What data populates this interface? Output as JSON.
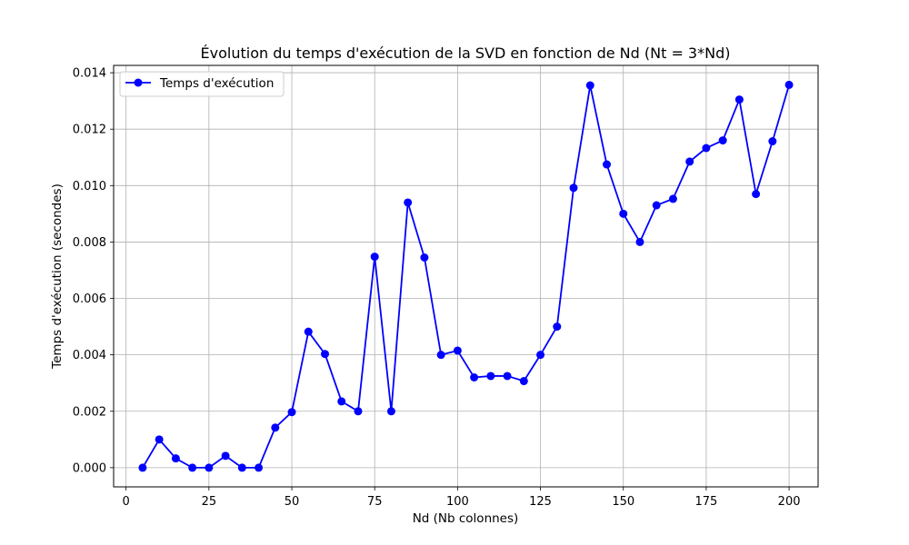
{
  "chart_data": {
    "type": "line",
    "title": "Évolution du temps d'exécution de la SVD en fonction de Nd (Nt = 3*Nd)",
    "xlabel": "Nd (Nb colonnes)",
    "ylabel": "Temps d'exécution (secondes)",
    "xlim": [
      -3.75,
      208.75
    ],
    "ylim": [
      -0.00068,
      0.01426
    ],
    "xticks": [
      0,
      25,
      50,
      75,
      100,
      125,
      150,
      175,
      200
    ],
    "yticks": [
      0.0,
      0.002,
      0.004,
      0.006,
      0.008,
      0.01,
      0.012,
      0.014
    ],
    "ytick_labels": [
      "0.000",
      "0.002",
      "0.004",
      "0.006",
      "0.008",
      "0.010",
      "0.012",
      "0.014"
    ],
    "grid": true,
    "legend_position": "top-left",
    "series": [
      {
        "name": "Temps d'exécution",
        "color": "#0000ff",
        "marker": "circle",
        "x": [
          5,
          10,
          15,
          20,
          25,
          30,
          35,
          40,
          45,
          50,
          55,
          60,
          65,
          70,
          75,
          80,
          85,
          90,
          95,
          100,
          105,
          110,
          115,
          120,
          125,
          130,
          135,
          140,
          145,
          150,
          155,
          160,
          165,
          170,
          175,
          180,
          185,
          190,
          195,
          200
        ],
        "y": [
          0.0,
          0.001,
          0.00033,
          0.0,
          0.0,
          0.00042,
          0.0,
          0.0,
          0.00142,
          0.00197,
          0.00482,
          0.00403,
          0.00235,
          0.002,
          0.00748,
          0.002,
          0.0094,
          0.00745,
          0.004,
          0.00415,
          0.0032,
          0.00325,
          0.00325,
          0.00307,
          0.004,
          0.005,
          0.00992,
          0.01355,
          0.01075,
          0.009,
          0.008,
          0.0093,
          0.00953,
          0.01085,
          0.01133,
          0.0116,
          0.01305,
          0.0097,
          0.01157,
          0.01357
        ]
      }
    ]
  }
}
